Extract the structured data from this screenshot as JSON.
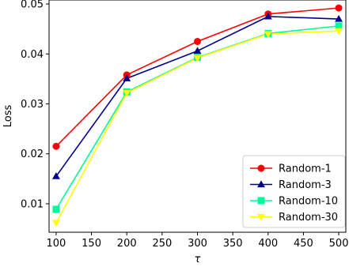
{
  "chart_data": {
    "type": "line",
    "title": "",
    "xlabel": "τ",
    "ylabel": "Loss",
    "xlim": [
      90,
      510
    ],
    "ylim": [
      0.0043,
      0.0508
    ],
    "xticks": [
      100,
      150,
      200,
      250,
      300,
      350,
      400,
      450,
      500
    ],
    "xtick_labels": [
      "100",
      "150",
      "200",
      "250",
      "300",
      "350",
      "400",
      "450",
      "500"
    ],
    "yticks": [
      0.01,
      0.02,
      0.03,
      0.04,
      0.05
    ],
    "ytick_labels": [
      "0.01",
      "0.02",
      "0.03",
      "0.04",
      "0.05"
    ],
    "grid": false,
    "legend_position": "bottom-right",
    "x": [
      100,
      200,
      300,
      400,
      500
    ],
    "series": [
      {
        "name": "Random-1",
        "values": [
          0.0215,
          0.0358,
          0.0425,
          0.048,
          0.0492
        ],
        "color": "#ff0000",
        "marker": "circle"
      },
      {
        "name": "Random-3",
        "values": [
          0.0155,
          0.0351,
          0.0406,
          0.0475,
          0.047
        ],
        "color": "#00008b",
        "marker": "triangle-up"
      },
      {
        "name": "Random-10",
        "values": [
          0.0089,
          0.0324,
          0.0393,
          0.0441,
          0.0456
        ],
        "color": "#00fa9a",
        "marker": "square"
      },
      {
        "name": "Random-30",
        "values": [
          0.0062,
          0.0322,
          0.0392,
          0.044,
          0.0446
        ],
        "color": "#ffff00",
        "marker": "triangle-down"
      }
    ]
  }
}
